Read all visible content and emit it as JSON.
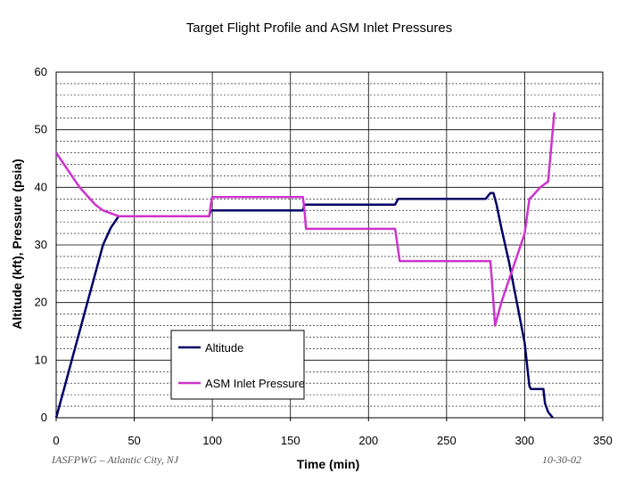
{
  "chart_data": {
    "type": "line",
    "title": "Target Flight Profile and ASM Inlet Pressures",
    "xlabel": "Time (min)",
    "ylabel": "Altitude (kft), Pressure (psia)",
    "xlim": [
      0,
      350
    ],
    "ylim": [
      0,
      60
    ],
    "xticks": [
      0,
      50,
      100,
      150,
      200,
      250,
      300,
      350
    ],
    "yticks": [
      0,
      10,
      20,
      30,
      40,
      50,
      60
    ],
    "minor_y_step": 2,
    "grid": true,
    "legend_position": "bottom-left",
    "series": [
      {
        "name": "Altitude",
        "color": "#000066",
        "x": [
          0,
          5,
          10,
          15,
          20,
          25,
          30,
          35,
          40,
          98,
          99,
          100,
          158,
          159,
          160,
          217,
          218,
          219,
          220,
          275,
          278,
          280,
          282,
          285,
          290,
          295,
          300,
          303,
          304,
          305,
          310,
          312,
          313,
          315,
          318
        ],
        "y": [
          0,
          5,
          10,
          15,
          20,
          25,
          30,
          33,
          35,
          35,
          36,
          36,
          36,
          37,
          37,
          37,
          37.5,
          38,
          38,
          38,
          39,
          39,
          37,
          33,
          27,
          20,
          13,
          5.5,
          5,
          5,
          5,
          5,
          2.5,
          1,
          0
        ]
      },
      {
        "name": "ASM Inlet Pressure",
        "color": "#cc33cc",
        "x": [
          0,
          5,
          10,
          15,
          20,
          25,
          30,
          35,
          40,
          98,
          99,
          100,
          158,
          159,
          160,
          217,
          218,
          219,
          220,
          278,
          279,
          280,
          281,
          283,
          285,
          290,
          295,
          300,
          303,
          305,
          310,
          315,
          317,
          319
        ],
        "y": [
          46,
          44,
          42,
          40,
          38.5,
          37,
          36,
          35.5,
          35,
          35,
          37,
          38.3,
          38.3,
          36,
          32.8,
          32.8,
          31,
          29,
          27.2,
          27.2,
          24,
          20,
          16,
          18,
          20,
          24,
          28,
          32,
          38,
          38.5,
          40,
          41,
          47,
          53
        ]
      }
    ]
  },
  "footer": {
    "left": "IASFPWG – Atlantic City, NJ",
    "right": "10-30-02"
  }
}
